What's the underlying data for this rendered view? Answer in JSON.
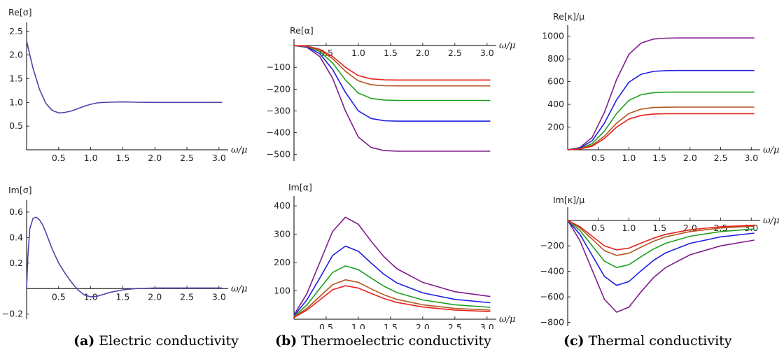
{
  "captions": [
    {
      "label": "(a)",
      "text": "Electric conductivity"
    },
    {
      "label": "(b)",
      "text": "Thermoelectric conductivity"
    },
    {
      "label": "(c)",
      "text": "Thermal conductivity"
    }
  ],
  "colors": {
    "purple": "#7F1D8C",
    "blue": "#1F1FE6",
    "green": "#1FA01F",
    "brown": "#B0561C",
    "red": "#E8201F",
    "single": "#5A3FA8"
  },
  "chart_data": [
    {
      "id": "re-sigma",
      "type": "line",
      "ylabel": "Re[σ]",
      "xlabel": "ω/μ",
      "xlim": [
        0,
        3.1
      ],
      "ylim": [
        0,
        2.6
      ],
      "xticks": [
        0.5,
        1.0,
        1.5,
        2.0,
        2.5,
        3.0
      ],
      "yticks": [
        0.5,
        1.0,
        1.5,
        2.0,
        2.5
      ],
      "xtick_labels": [
        "0.5",
        "1.0",
        "1.5",
        "2.0",
        "2.5",
        "3.0"
      ],
      "ytick_labels": [
        "0.5",
        "1.0",
        "1.5",
        "2.0",
        "2.5"
      ],
      "series": [
        {
          "color": "#5A3FA8",
          "x": [
            0.0,
            0.05,
            0.1,
            0.2,
            0.3,
            0.4,
            0.5,
            0.55,
            0.6,
            0.7,
            0.8,
            0.9,
            1.0,
            1.1,
            1.2,
            1.3,
            1.5,
            1.7,
            2.0,
            2.5,
            3.05
          ],
          "y": [
            2.3,
            2.0,
            1.72,
            1.28,
            0.98,
            0.83,
            0.78,
            0.78,
            0.79,
            0.82,
            0.87,
            0.92,
            0.96,
            0.99,
            1.0,
            1.005,
            1.01,
            1.005,
            1.0,
            1.0,
            1.0
          ]
        }
      ]
    },
    {
      "id": "re-alpha",
      "type": "line",
      "ylabel": "Re[α]",
      "xlabel": "ω/μ",
      "xlim": [
        0,
        3.1
      ],
      "ylim": [
        -530,
        10
      ],
      "xticks": [
        0.5,
        1.0,
        1.5,
        2.0,
        2.5,
        3.0
      ],
      "yticks": [
        -500,
        -400,
        -300,
        -200,
        -100
      ],
      "xtick_labels": [
        "0.5",
        "1.0",
        "1.5",
        "2.0",
        "2.5",
        "3.0"
      ],
      "ytick_labels": [
        "−500",
        "−400",
        "−300",
        "−200",
        "−100"
      ],
      "series": [
        {
          "color": "#7F1D8C",
          "x": [
            0,
            0.2,
            0.4,
            0.6,
            0.8,
            1.0,
            1.2,
            1.4,
            1.6,
            1.8,
            2.0,
            2.5,
            3.05
          ],
          "y": [
            0,
            -8,
            -50,
            -150,
            -300,
            -420,
            -468,
            -482,
            -485,
            -485,
            -485,
            -485,
            -485
          ]
        },
        {
          "color": "#1F1FE6",
          "x": [
            0,
            0.2,
            0.4,
            0.6,
            0.8,
            1.0,
            1.2,
            1.4,
            1.6,
            1.8,
            2.0,
            2.5,
            3.05
          ],
          "y": [
            0,
            -6,
            -37,
            -110,
            -215,
            -300,
            -335,
            -345,
            -347,
            -347,
            -347,
            -347,
            -347
          ]
        },
        {
          "color": "#1FA01F",
          "x": [
            0,
            0.2,
            0.4,
            0.6,
            0.8,
            1.0,
            1.2,
            1.4,
            1.6,
            1.8,
            2.0,
            2.5,
            3.05
          ],
          "y": [
            0,
            -4,
            -27,
            -80,
            -158,
            -218,
            -243,
            -250,
            -252,
            -252,
            -252,
            -252,
            -252
          ]
        },
        {
          "color": "#B0561C",
          "x": [
            0,
            0.2,
            0.4,
            0.6,
            0.8,
            1.0,
            1.2,
            1.4,
            1.6,
            1.8,
            2.0,
            2.5,
            3.05
          ],
          "y": [
            0,
            -3,
            -20,
            -60,
            -118,
            -162,
            -180,
            -184,
            -185,
            -185,
            -185,
            -185,
            -185
          ]
        },
        {
          "color": "#E8201F",
          "x": [
            0,
            0.2,
            0.4,
            0.6,
            0.8,
            1.0,
            1.2,
            1.4,
            1.6,
            1.8,
            2.0,
            2.5,
            3.05
          ],
          "y": [
            0,
            -2.5,
            -17,
            -50,
            -100,
            -138,
            -153,
            -157,
            -158,
            -158,
            -158,
            -158,
            -158
          ]
        }
      ]
    },
    {
      "id": "re-kappa",
      "type": "line",
      "ylabel": "Re[κ]/μ",
      "xlabel": "ω/μ",
      "xlim": [
        0,
        3.1
      ],
      "ylim": [
        0,
        1060
      ],
      "xticks": [
        0.5,
        1.0,
        1.5,
        2.0,
        2.5,
        3.0
      ],
      "yticks": [
        200,
        400,
        600,
        800,
        1000
      ],
      "xtick_labels": [
        "0.5",
        "1.0",
        "1.5",
        "2.0",
        "2.5",
        "3.0"
      ],
      "ytick_labels": [
        "200",
        "400",
        "600",
        "800",
        "1000"
      ],
      "series": [
        {
          "color": "#7F1D8C",
          "x": [
            0,
            0.2,
            0.4,
            0.6,
            0.8,
            1.0,
            1.2,
            1.4,
            1.6,
            1.8,
            2.0,
            2.5,
            3.05
          ],
          "y": [
            0,
            20,
            110,
            330,
            620,
            840,
            940,
            975,
            983,
            985,
            985,
            985,
            985
          ]
        },
        {
          "color": "#1F1FE6",
          "x": [
            0,
            0.2,
            0.4,
            0.6,
            0.8,
            1.0,
            1.2,
            1.4,
            1.6,
            1.8,
            2.0,
            2.5,
            3.05
          ],
          "y": [
            0,
            15,
            80,
            235,
            440,
            595,
            665,
            690,
            697,
            698,
            698,
            698,
            698
          ]
        },
        {
          "color": "#1FA01F",
          "x": [
            0,
            0.2,
            0.4,
            0.6,
            0.8,
            1.0,
            1.2,
            1.4,
            1.6,
            1.8,
            2.0,
            2.5,
            3.05
          ],
          "y": [
            0,
            10,
            55,
            165,
            320,
            435,
            485,
            503,
            507,
            508,
            508,
            508,
            508
          ]
        },
        {
          "color": "#B0561C",
          "x": [
            0,
            0.2,
            0.4,
            0.6,
            0.8,
            1.0,
            1.2,
            1.4,
            1.6,
            1.8,
            2.0,
            2.5,
            3.05
          ],
          "y": [
            0,
            8,
            40,
            120,
            235,
            320,
            358,
            372,
            375,
            376,
            376,
            376,
            376
          ]
        },
        {
          "color": "#E8201F",
          "x": [
            0,
            0.2,
            0.4,
            0.6,
            0.8,
            1.0,
            1.2,
            1.4,
            1.6,
            1.8,
            2.0,
            2.5,
            3.05
          ],
          "y": [
            0,
            6,
            32,
            100,
            200,
            270,
            303,
            315,
            318,
            318,
            318,
            318,
            318
          ]
        }
      ]
    },
    {
      "id": "im-sigma",
      "type": "line",
      "ylabel": "Im[σ]",
      "xlabel": "ω/μ",
      "xlim": [
        0,
        3.1
      ],
      "ylim": [
        -0.24,
        0.66
      ],
      "xticks": [
        0.5,
        1.0,
        1.5,
        2.0,
        2.5,
        3.0
      ],
      "yticks": [
        -0.2,
        0.2,
        0.4,
        0.6
      ],
      "xtick_labels": [
        "0.5",
        "1.0",
        "1.5",
        "2.0",
        "2.5",
        "3.0"
      ],
      "ytick_labels": [
        "−0.2",
        "0.2",
        "0.4",
        "0.6"
      ],
      "series": [
        {
          "color": "#5A3FA8",
          "x": [
            0,
            0.02,
            0.05,
            0.1,
            0.15,
            0.2,
            0.25,
            0.3,
            0.4,
            0.5,
            0.6,
            0.7,
            0.8,
            0.9,
            1.0,
            1.1,
            1.2,
            1.3,
            1.5,
            1.7,
            2.0,
            2.5,
            3.05
          ],
          "y": [
            0,
            0.25,
            0.47,
            0.55,
            0.56,
            0.54,
            0.5,
            0.44,
            0.31,
            0.2,
            0.12,
            0.05,
            -0.01,
            -0.05,
            -0.065,
            -0.06,
            -0.045,
            -0.03,
            -0.01,
            0.0,
            0.005,
            0.005,
            0.005
          ]
        }
      ]
    },
    {
      "id": "im-alpha",
      "type": "line",
      "ylabel": "Im[α]",
      "xlabel": "ω/μ",
      "xlim": [
        0,
        3.1
      ],
      "ylim": [
        0,
        420
      ],
      "xticks": [
        0.5,
        1.0,
        1.5,
        2.0,
        2.5,
        3.0
      ],
      "yticks": [
        100,
        200,
        300,
        400
      ],
      "xtick_labels": [
        "0.5",
        "1.0",
        "1.5",
        "2.0",
        "2.5",
        "3.0"
      ],
      "ytick_labels": [
        "100",
        "200",
        "300",
        "400"
      ],
      "series": [
        {
          "color": "#7F1D8C",
          "x": [
            0,
            0.2,
            0.4,
            0.6,
            0.8,
            1.0,
            1.2,
            1.4,
            1.6,
            2.0,
            2.5,
            3.05
          ],
          "y": [
            15,
            90,
            200,
            310,
            360,
            335,
            275,
            220,
            178,
            130,
            97,
            80
          ]
        },
        {
          "color": "#1F1FE6",
          "x": [
            0,
            0.2,
            0.4,
            0.6,
            0.8,
            1.0,
            1.2,
            1.4,
            1.6,
            2.0,
            2.5,
            3.05
          ],
          "y": [
            12,
            68,
            145,
            225,
            258,
            240,
            198,
            158,
            128,
            93,
            70,
            58
          ]
        },
        {
          "color": "#1FA01F",
          "x": [
            0,
            0.2,
            0.4,
            0.6,
            0.8,
            1.0,
            1.2,
            1.4,
            1.6,
            2.0,
            2.5,
            3.05
          ],
          "y": [
            10,
            50,
            108,
            165,
            188,
            175,
            145,
            116,
            94,
            68,
            51,
            42
          ]
        },
        {
          "color": "#B0561C",
          "x": [
            0,
            0.2,
            0.4,
            0.6,
            0.8,
            1.0,
            1.2,
            1.4,
            1.6,
            2.0,
            2.5,
            3.05
          ],
          "y": [
            8,
            38,
            80,
            122,
            139,
            130,
            107,
            86,
            70,
            51,
            38,
            32
          ]
        },
        {
          "color": "#E8201F",
          "x": [
            0,
            0.2,
            0.4,
            0.6,
            0.8,
            1.0,
            1.2,
            1.4,
            1.6,
            2.0,
            2.5,
            3.05
          ],
          "y": [
            6,
            32,
            68,
            104,
            118,
            110,
            91,
            73,
            59,
            43,
            32,
            27
          ]
        }
      ]
    },
    {
      "id": "im-kappa",
      "type": "line",
      "ylabel": "Im[κ]/μ",
      "xlabel": "ω/μ",
      "xlim": [
        0,
        3.1
      ],
      "ylim": [
        -830,
        70
      ],
      "xticks": [
        0.5,
        1.0,
        1.5,
        2.0,
        2.5,
        3.0
      ],
      "yticks": [
        -800,
        -600,
        -400,
        -200
      ],
      "xtick_labels": [
        "0.5",
        "1.0",
        "1.5",
        "2.0",
        "2.5",
        "3.0"
      ],
      "ytick_labels": [
        "−800",
        "−600",
        "−400",
        "−200"
      ],
      "series": [
        {
          "color": "#7F1D8C",
          "x": [
            0,
            0.2,
            0.4,
            0.6,
            0.8,
            1.0,
            1.2,
            1.4,
            1.6,
            2.0,
            2.5,
            3.05
          ],
          "y": [
            0,
            -160,
            -390,
            -620,
            -720,
            -680,
            -560,
            -450,
            -370,
            -270,
            -200,
            -155
          ]
        },
        {
          "color": "#1F1FE6",
          "x": [
            0,
            0.2,
            0.4,
            0.6,
            0.8,
            1.0,
            1.2,
            1.4,
            1.6,
            2.0,
            2.5,
            3.05
          ],
          "y": [
            0,
            -110,
            -275,
            -440,
            -510,
            -480,
            -395,
            -315,
            -255,
            -180,
            -130,
            -100
          ]
        },
        {
          "color": "#1FA01F",
          "x": [
            0,
            0.2,
            0.4,
            0.6,
            0.8,
            1.0,
            1.2,
            1.4,
            1.6,
            2.0,
            2.5,
            3.05
          ],
          "y": [
            0,
            -80,
            -200,
            -320,
            -370,
            -348,
            -285,
            -225,
            -180,
            -125,
            -88,
            -68
          ]
        },
        {
          "color": "#B0561C",
          "x": [
            0,
            0.2,
            0.4,
            0.6,
            0.8,
            1.0,
            1.2,
            1.4,
            1.6,
            2.0,
            2.5,
            3.05
          ],
          "y": [
            0,
            -60,
            -148,
            -238,
            -275,
            -258,
            -210,
            -165,
            -130,
            -88,
            -60,
            -45
          ]
        },
        {
          "color": "#E8201F",
          "x": [
            0,
            0.2,
            0.4,
            0.6,
            0.8,
            1.0,
            1.2,
            1.4,
            1.6,
            2.0,
            2.5,
            3.05
          ],
          "y": [
            0,
            -50,
            -125,
            -200,
            -232,
            -218,
            -178,
            -140,
            -110,
            -74,
            -50,
            -38
          ]
        }
      ]
    }
  ]
}
